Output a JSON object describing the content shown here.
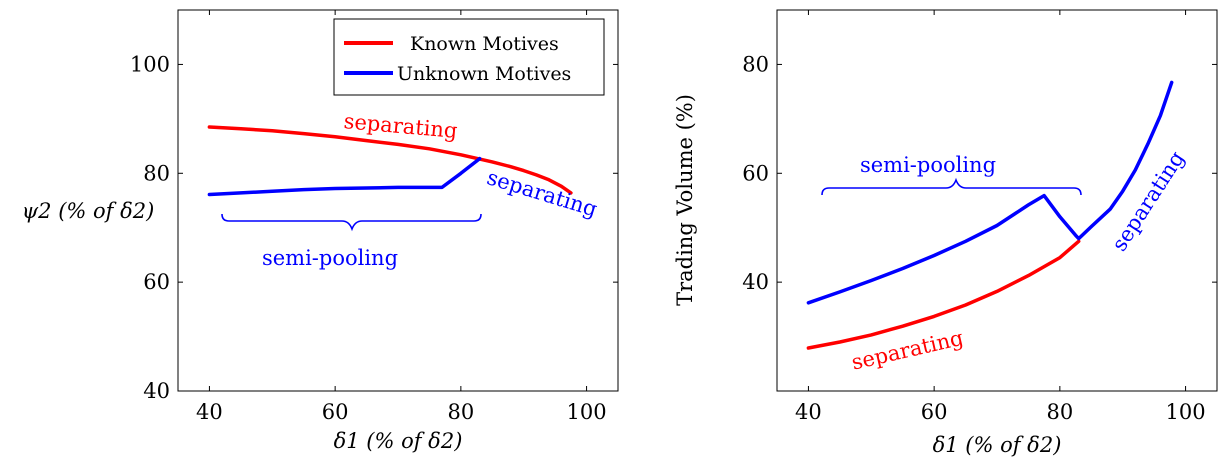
{
  "chart_data": [
    {
      "type": "line",
      "ylabel": "ψ2 (% of δ2)",
      "xlabel": "δ1 (% of δ2)",
      "xlim": [
        35,
        105
      ],
      "ylim": [
        40,
        110
      ],
      "xticks": [
        "40",
        "60",
        "80",
        "100"
      ],
      "yticks": [
        "40",
        "60",
        "80",
        "100"
      ],
      "legend_position": "top-right",
      "legend": [
        "Known Motives",
        "Unknown Motives"
      ],
      "series": [
        {
          "name": "Known Motives",
          "color": "#ff0000",
          "x": [
            40,
            45,
            50,
            55,
            60,
            65,
            70,
            75,
            80,
            83,
            85,
            88,
            90,
            92,
            94,
            96,
            97.5
          ],
          "y": [
            88.5,
            88.2,
            87.8,
            87.3,
            86.7,
            86.0,
            85.3,
            84.5,
            83.4,
            82.6,
            82.1,
            81.2,
            80.5,
            79.7,
            78.8,
            77.6,
            76.4
          ]
        },
        {
          "name": "Unknown Motives",
          "color": "#0000ff",
          "x": [
            40,
            45,
            50,
            55,
            60,
            65,
            70,
            75,
            77,
            80,
            83
          ],
          "y": [
            76.1,
            76.4,
            76.7,
            77.0,
            77.2,
            77.3,
            77.4,
            77.4,
            77.4,
            80.0,
            82.7
          ]
        }
      ],
      "annotations": {
        "separating_known": "separating",
        "separating_unknown": "separating",
        "semi_pooling": "semi-pooling"
      }
    },
    {
      "type": "line",
      "ylabel": "Trading Volume (%)",
      "xlabel": "δ1 (% of δ2)",
      "xlim": [
        35,
        105
      ],
      "ylim": [
        20,
        90
      ],
      "xticks": [
        "40",
        "60",
        "80",
        "100"
      ],
      "yticks": [
        "40",
        "60",
        "80"
      ],
      "series": [
        {
          "name": "Known Motives",
          "color": "#ff0000",
          "x": [
            40,
            45,
            50,
            55,
            60,
            65,
            70,
            75,
            80,
            83
          ],
          "y": [
            27.9,
            29.0,
            30.3,
            31.9,
            33.7,
            35.8,
            38.3,
            41.2,
            44.5,
            47.5
          ]
        },
        {
          "name": "Unknown Motives",
          "color": "#0000ff",
          "x": [
            40,
            45,
            50,
            55,
            60,
            65,
            70,
            75,
            77.5,
            80,
            82.5,
            83,
            85,
            88,
            90,
            92,
            94,
            96,
            97.8
          ],
          "y": [
            36.2,
            38.2,
            40.3,
            42.5,
            44.9,
            47.5,
            50.4,
            54.2,
            55.9,
            52.0,
            48.6,
            48.0,
            50.2,
            53.4,
            56.7,
            60.6,
            65.4,
            70.6,
            76.7
          ]
        }
      ],
      "annotations": {
        "separating_known": "separating",
        "separating_unknown": "separating",
        "semi_pooling": "semi-pooling"
      }
    }
  ]
}
